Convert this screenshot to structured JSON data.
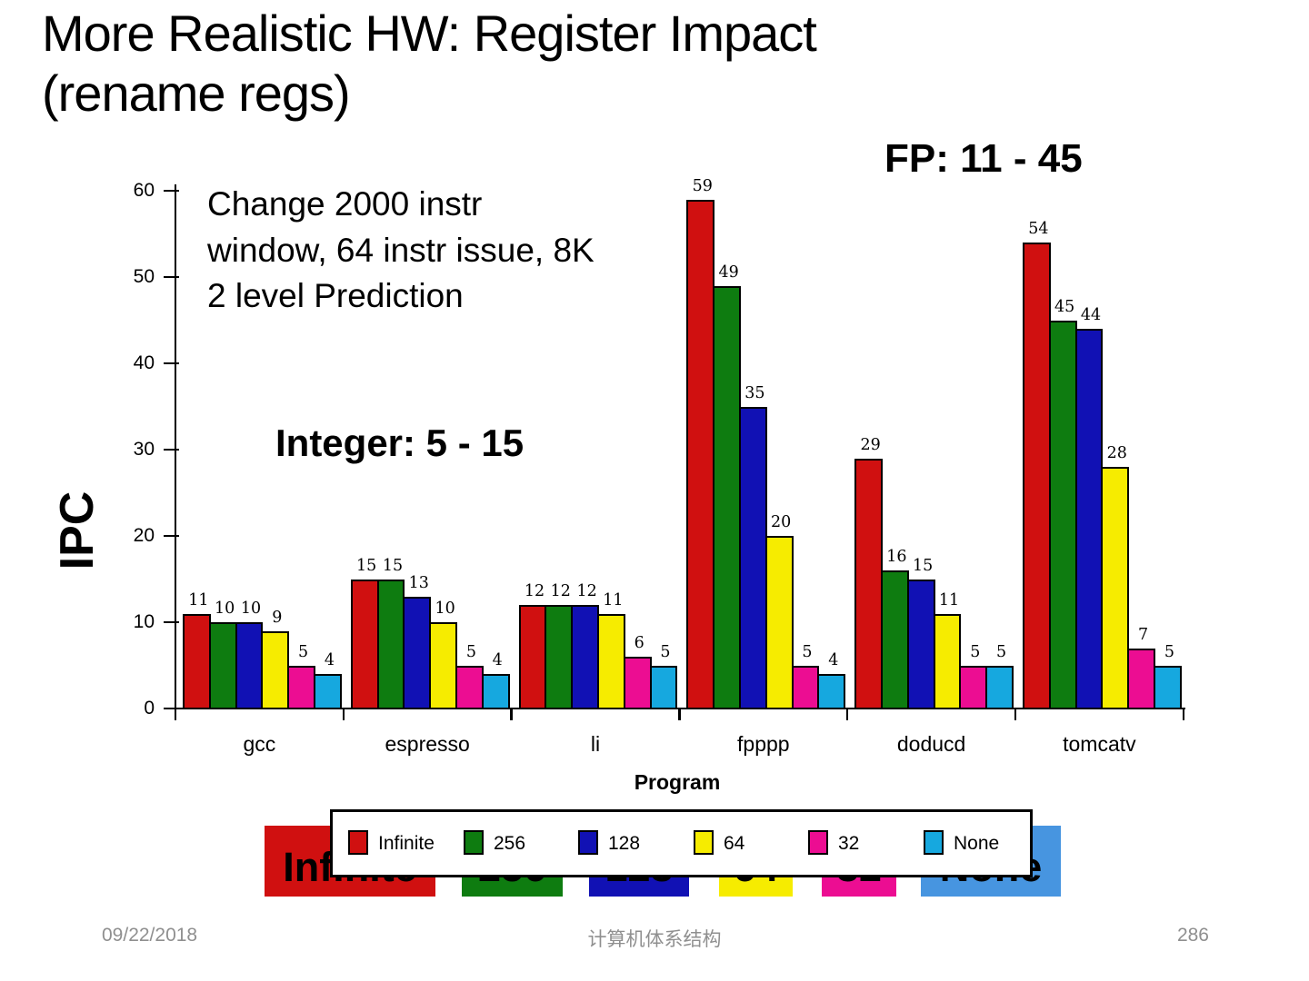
{
  "slide": {
    "title": "More Realistic HW: Register Impact\n(rename regs)",
    "config_note": "Change  2000 instr\nwindow, 64 instr issue, 8K\n2 level Prediction",
    "integer_note": "Integer: 5 - 15",
    "fp_note": "FP: 11 - 45"
  },
  "chart_data": {
    "type": "bar",
    "title": "",
    "xlabel": "Program",
    "ylabel": "IPC",
    "ylim": [
      0,
      60
    ],
    "ytick_step": 10,
    "grid": false,
    "legend_position": "bottom",
    "categories": [
      "gcc",
      "espresso",
      "li",
      "fpppp",
      "doducd",
      "tomcatv"
    ],
    "series": [
      {
        "name": "Infinite",
        "color": "#d01010",
        "values": [
          11,
          15,
          12,
          59,
          29,
          54
        ]
      },
      {
        "name": "256",
        "color": "#0e7c10",
        "values": [
          10,
          15,
          12,
          49,
          16,
          45
        ]
      },
      {
        "name": "128",
        "color": "#1111b4",
        "values": [
          10,
          13,
          12,
          35,
          15,
          44
        ]
      },
      {
        "name": "64",
        "color": "#f6ec00",
        "values": [
          9,
          10,
          11,
          20,
          11,
          28
        ]
      },
      {
        "name": "32",
        "color": "#ec0d92",
        "values": [
          5,
          5,
          6,
          5,
          5,
          7
        ]
      },
      {
        "name": "None",
        "color": "#16a8df",
        "values": [
          4,
          4,
          5,
          4,
          5,
          5
        ]
      }
    ]
  },
  "legend_blocks": [
    {
      "label": "Infinite",
      "color": "#d01010"
    },
    {
      "label": "256",
      "color": "#0e7c10"
    },
    {
      "label": "128",
      "color": "#1111b4"
    },
    {
      "label": "64",
      "color": "#f6ec00"
    },
    {
      "label": "32",
      "color": "#ec0d92"
    },
    {
      "label": "None",
      "color": "#4795e0"
    }
  ],
  "footer": {
    "date": "09/22/2018",
    "center": "计算机体系结构",
    "page": "286"
  }
}
